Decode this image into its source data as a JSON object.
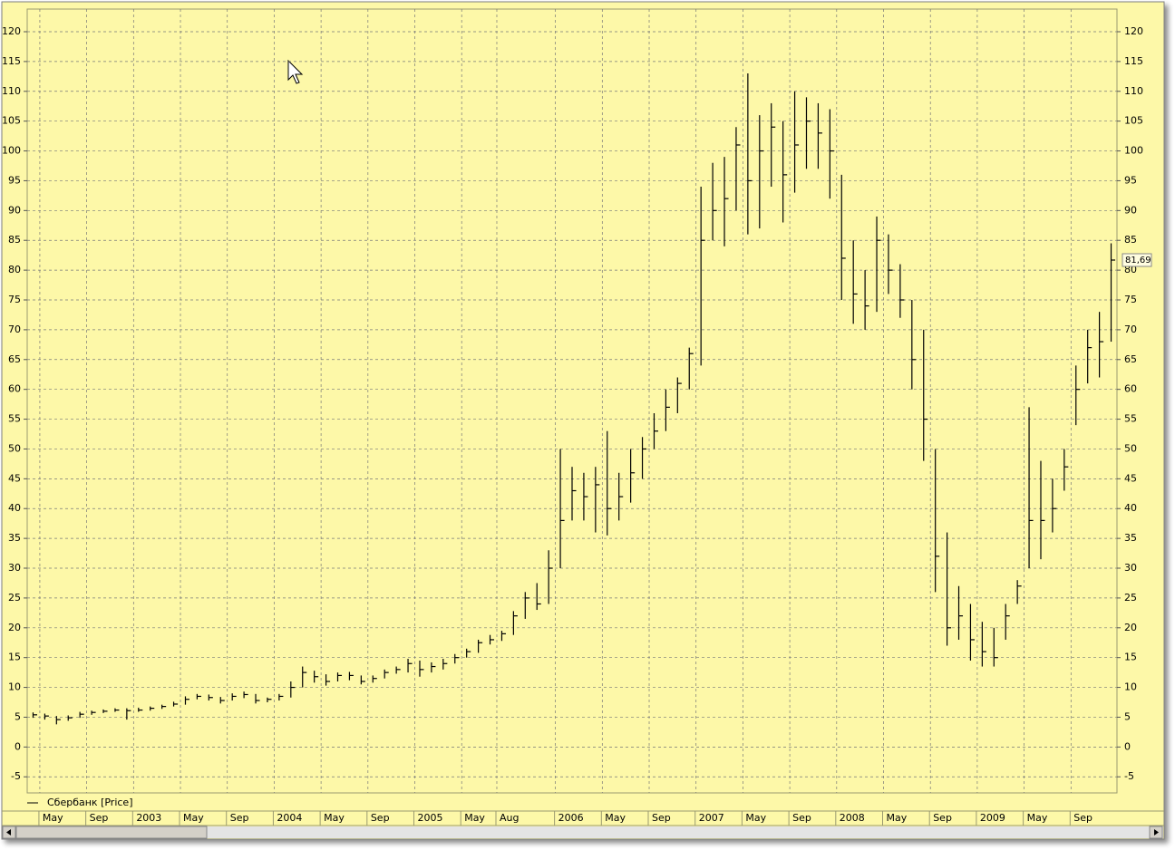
{
  "chart_data": {
    "type": "ohlc",
    "categories": [
      null,
      "May",
      null,
      null,
      null,
      "Sep",
      null,
      null,
      null,
      "2003",
      null,
      null,
      null,
      "May",
      null,
      null,
      null,
      "Sep",
      null,
      null,
      null,
      "2004",
      null,
      null,
      null,
      "May",
      null,
      null,
      null,
      "Sep",
      null,
      null,
      null,
      "2005",
      null,
      null,
      null,
      "May",
      null,
      null,
      "Aug",
      null,
      null,
      null,
      null,
      "2006",
      null,
      null,
      null,
      "May",
      null,
      null,
      null,
      "Sep",
      null,
      null,
      null,
      "2007",
      null,
      null,
      null,
      "May",
      null,
      null,
      null,
      "Sep",
      null,
      null,
      null,
      "2008",
      null,
      null,
      null,
      "May",
      null,
      null,
      null,
      "Sep",
      null,
      null,
      null,
      "2009",
      null,
      null,
      null,
      "May",
      null,
      null,
      null,
      "Sep",
      null,
      null,
      null
    ],
    "series": [
      {
        "name": "Сбербанк [Price]",
        "color": "#000000",
        "high": [
          5.8,
          5.6,
          5.2,
          5.3,
          5.9,
          6.1,
          6.3,
          6.5,
          6.5,
          6.6,
          6.8,
          7.1,
          7.6,
          8.5,
          8.9,
          8.8,
          8.4,
          9.0,
          9.3,
          8.9,
          8.3,
          8.9,
          11,
          13.5,
          12.8,
          12.2,
          12.5,
          12.6,
          12,
          12,
          13,
          13.5,
          14.8,
          14.5,
          14.2,
          14.8,
          15.6,
          16.5,
          18,
          18.8,
          19.5,
          22.8,
          26,
          27.5,
          33,
          50,
          47,
          46,
          47,
          53,
          46,
          50,
          52,
          56,
          60,
          62,
          67,
          94,
          98,
          99,
          104,
          113,
          106,
          108,
          105,
          110,
          109,
          108,
          107,
          96,
          85,
          80,
          89,
          86,
          81,
          75,
          70,
          50,
          36,
          27,
          24,
          21,
          20,
          24,
          28,
          57,
          48,
          45,
          50,
          64,
          70,
          73,
          84.5
        ],
        "low": [
          4.9,
          4.6,
          3.8,
          4.4,
          4.9,
          5.4,
          5.7,
          5.9,
          4.6,
          5.9,
          6.1,
          6.4,
          6.8,
          7.1,
          8.0,
          7.8,
          7.3,
          7.8,
          8.2,
          7.3,
          7.5,
          7.8,
          8.3,
          10,
          10.8,
          10.3,
          11,
          11.2,
          10.5,
          10.8,
          11.5,
          12.3,
          12.5,
          11.8,
          12.5,
          13,
          14,
          15,
          15.8,
          17.2,
          17.8,
          18.8,
          21.5,
          23,
          24,
          30,
          38,
          38,
          36,
          35.5,
          38,
          41,
          45,
          50,
          53,
          56,
          60,
          64,
          85,
          84,
          90,
          86,
          87,
          94,
          88,
          93,
          97,
          97,
          92,
          75,
          71,
          70,
          73,
          76,
          72,
          60,
          48,
          26,
          17,
          18,
          14.5,
          13.5,
          13.5,
          18,
          24,
          30,
          31.5,
          36,
          43,
          54,
          61,
          62,
          68
        ],
        "close": [
          5.4,
          5.2,
          4.6,
          4.9,
          5.5,
          5.8,
          6.0,
          6.2,
          6.1,
          6.2,
          6.5,
          6.8,
          7.2,
          8.0,
          8.5,
          8.3,
          7.8,
          8.5,
          8.8,
          7.8,
          8.0,
          8.5,
          10,
          12.5,
          11.8,
          11,
          12,
          12,
          11,
          11.5,
          12.5,
          13,
          14,
          13,
          13.5,
          14,
          15,
          16,
          17.5,
          18,
          19,
          22,
          25,
          24,
          30,
          38,
          43,
          42,
          44,
          40,
          42,
          46,
          50,
          53,
          57,
          61,
          66,
          85,
          90,
          92,
          101,
          95,
          100,
          104,
          96,
          101,
          105,
          103,
          100,
          82,
          76,
          74,
          85,
          80,
          75,
          65,
          55,
          32,
          20,
          22,
          18,
          16,
          15,
          22,
          27,
          38,
          38,
          40,
          47,
          60,
          67,
          68,
          81.69
        ],
        "last_value_label": "81,69"
      }
    ],
    "ylim": [
      -7.7,
      123.8
    ],
    "yticks": [
      -5,
      0,
      5,
      10,
      15,
      20,
      25,
      30,
      35,
      40,
      45,
      50,
      55,
      60,
      65,
      70,
      75,
      80,
      85,
      90,
      95,
      100,
      105,
      110,
      115,
      120
    ],
    "grid": true
  }
}
